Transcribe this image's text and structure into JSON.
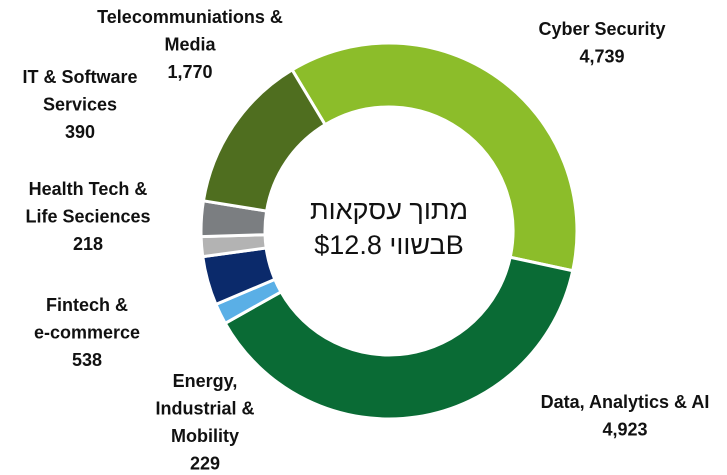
{
  "chart_data": {
    "type": "donut",
    "center_text": [
      "מתוך עסקאות",
      "בשווי $12.8B"
    ],
    "categories": [
      [
        "Cyber Security"
      ],
      [
        "Data, Analytics & AI"
      ],
      [
        "Energy,",
        "Industrial &",
        "Mobility"
      ],
      [
        "Fintech &",
        "e-commerce"
      ],
      [
        "Health Tech &",
        "Life Seciences"
      ],
      [
        "IT & Software",
        "Services"
      ],
      [
        "Telecommuniations &",
        "Media"
      ]
    ],
    "values": [
      4739,
      4923,
      229,
      538,
      218,
      390,
      1770
    ],
    "value_labels": [
      "4,739",
      "4,923",
      "229",
      "538",
      "218",
      "390",
      "1,770"
    ],
    "colors": [
      "#8cbd2a",
      "#0a6b35",
      "#5aafe6",
      "#0b2a6b",
      "#b3b3b3",
      "#7b7e81",
      "#4f6e1f"
    ]
  }
}
